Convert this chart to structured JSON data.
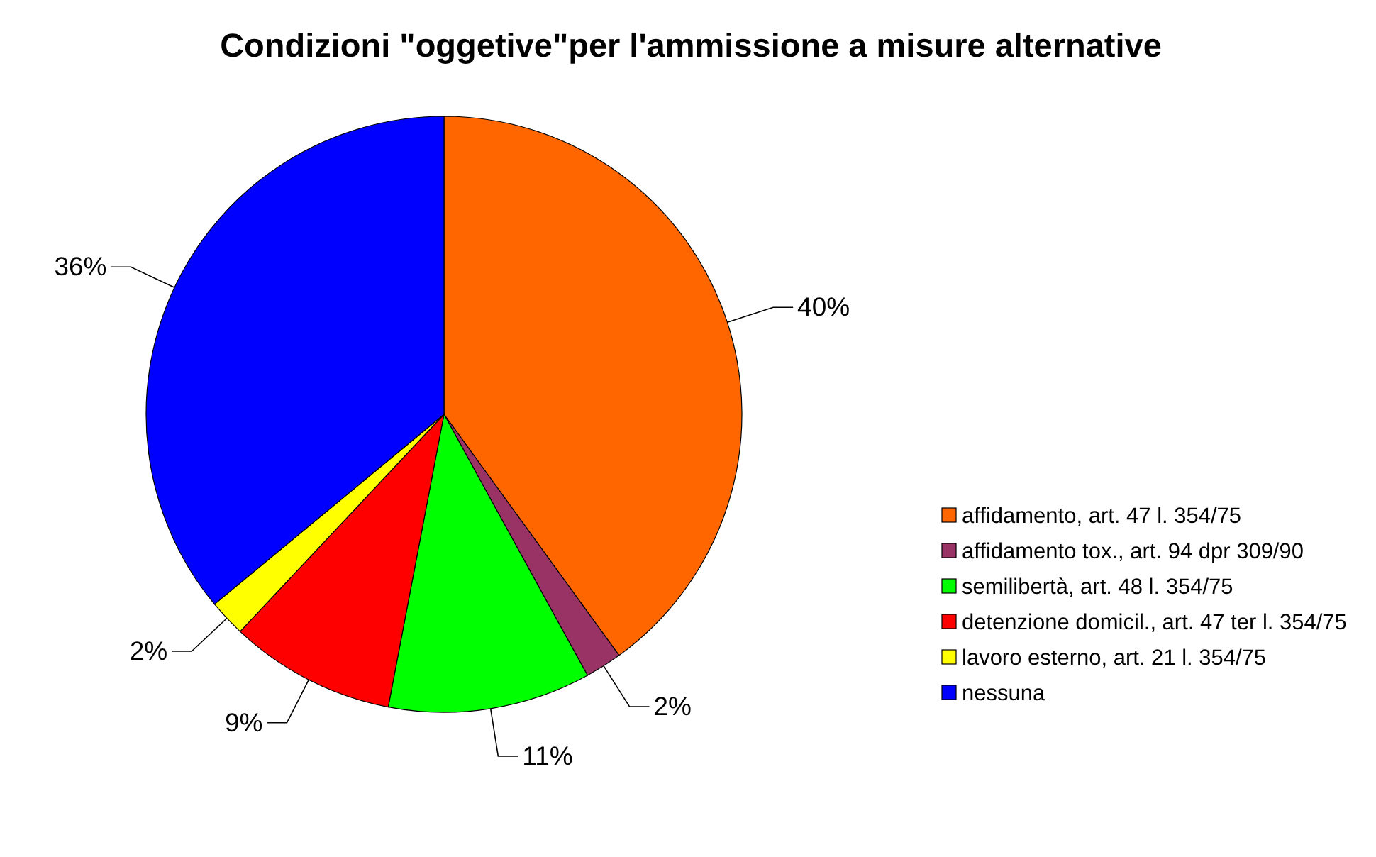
{
  "chart_data": {
    "type": "pie",
    "title": "Condizioni \"oggetive\"per l'ammissione a misure alternative",
    "categories": [
      "affidamento, art. 47 l. 354/75",
      "affidamento tox., art. 94 dpr 309/90",
      "semilibertà, art. 48 l. 354/75",
      "detenzione domicil., art. 47 ter l. 354/75",
      "lavoro esterno, art. 21 l. 354/75",
      "nessuna"
    ],
    "values": [
      40,
      2,
      11,
      9,
      2,
      36
    ],
    "value_labels": [
      "40%",
      "2%",
      "11%",
      "9%",
      "2%",
      "36%"
    ],
    "colors": [
      "#ff6600",
      "#993366",
      "#00ff00",
      "#ff0000",
      "#ffff00",
      "#0000ff"
    ],
    "legend": "right"
  }
}
